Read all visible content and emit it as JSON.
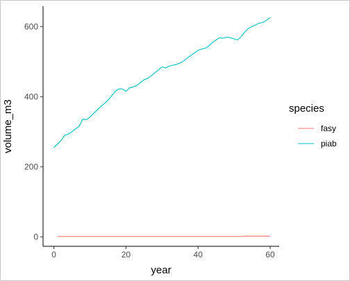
{
  "chart_data": {
    "type": "line",
    "xlabel": "year",
    "ylabel": "volume_m3",
    "xlim": [
      -3,
      62.5
    ],
    "ylim": [
      -27,
      658
    ],
    "x_ticks": [
      0,
      20,
      40,
      60
    ],
    "y_ticks": [
      0,
      200,
      400,
      600
    ],
    "x_tick_labels": [
      "0",
      "20",
      "40",
      "60"
    ],
    "y_tick_labels": [
      "0",
      "200",
      "400",
      "600"
    ],
    "grid": false,
    "legend": {
      "title": "species",
      "placement": "right"
    },
    "series": [
      {
        "name": "fasy",
        "color": "#F8766D",
        "x": [
          1,
          10,
          20,
          30,
          40,
          50,
          52,
          53,
          55,
          60
        ],
        "y": [
          1,
          1,
          1,
          1,
          1,
          1,
          1,
          2,
          2,
          2
        ]
      },
      {
        "name": "piab",
        "color": "#00BFC4",
        "x": [
          0,
          2,
          3,
          4,
          5,
          6,
          7,
          8,
          9,
          10,
          11,
          12,
          13,
          14,
          15,
          16,
          17,
          18,
          19,
          20,
          21,
          22,
          23,
          24,
          25,
          26,
          27,
          28,
          29,
          30,
          31,
          32,
          33,
          34,
          35,
          36,
          37,
          38,
          39,
          40,
          41,
          42,
          43,
          44,
          45,
          46,
          47,
          48,
          49,
          50,
          51,
          52,
          53,
          54,
          55,
          56,
          57,
          58,
          59,
          60
        ],
        "y": [
          255,
          275,
          290,
          293,
          300,
          308,
          315,
          336,
          334,
          342,
          352,
          362,
          372,
          380,
          390,
          402,
          415,
          422,
          422,
          415,
          425,
          428,
          432,
          440,
          448,
          452,
          460,
          468,
          476,
          485,
          482,
          487,
          490,
          492,
          496,
          502,
          510,
          518,
          525,
          532,
          536,
          538,
          545,
          555,
          562,
          568,
          567,
          570,
          568,
          565,
          562,
          572,
          585,
          595,
          600,
          605,
          610,
          612,
          618,
          626
        ]
      }
    ]
  }
}
